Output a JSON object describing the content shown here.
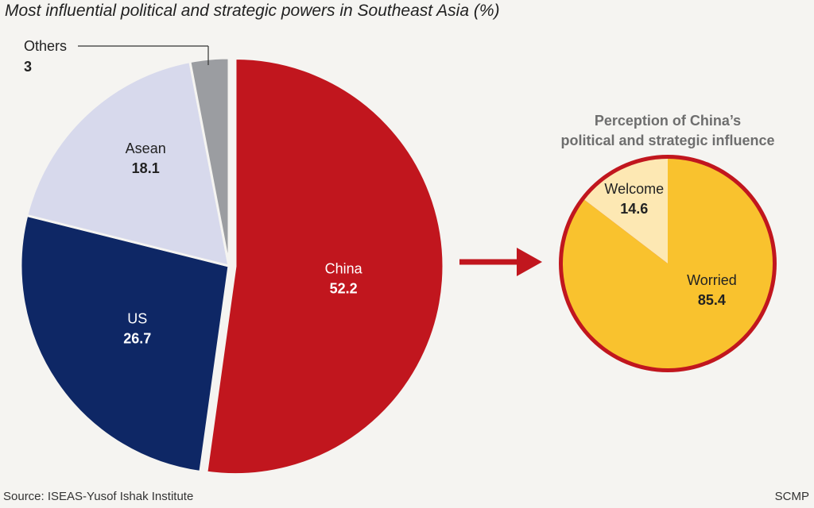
{
  "chart_data": [
    {
      "type": "pie",
      "title": "Most influential political and strategic powers in Southeast Asia (%)",
      "slices": [
        {
          "label": "China",
          "value": 52.2,
          "value_text": "52.2",
          "color": "#c1161e",
          "text_color": "#ffffff",
          "exploded": true
        },
        {
          "label": "US",
          "value": 26.7,
          "value_text": "26.7",
          "color": "#0e2765",
          "text_color": "#ffffff",
          "exploded": false
        },
        {
          "label": "Asean",
          "value": 18.1,
          "value_text": "18.1",
          "color": "#d7d9ec",
          "text_color": "#222222",
          "exploded": false
        },
        {
          "label": "Others",
          "value": 3,
          "value_text": "3",
          "color": "#9b9da1",
          "text_color": "#222222",
          "exploded": false
        }
      ]
    },
    {
      "type": "pie",
      "title": "Perception of China's political and strategic influence",
      "title_lines": [
        "Perception of China’s",
        "political and strategic influence"
      ],
      "slices": [
        {
          "label": "Worried",
          "value": 85.4,
          "value_text": "85.4",
          "color": "#f9c22e",
          "text_color": "#222222"
        },
        {
          "label": "Welcome",
          "value": 14.6,
          "value_text": "14.6",
          "color": "#fde8b3",
          "text_color": "#222222"
        }
      ],
      "border_color": "#c1161e"
    }
  ],
  "footer": {
    "source": "Source: ISEAS-Yusof Ishak Institute",
    "credit": "SCMP"
  },
  "colors": {
    "arrow": "#c1161e",
    "title_gray": "#6e6e6e",
    "leader_line": "#333333"
  }
}
